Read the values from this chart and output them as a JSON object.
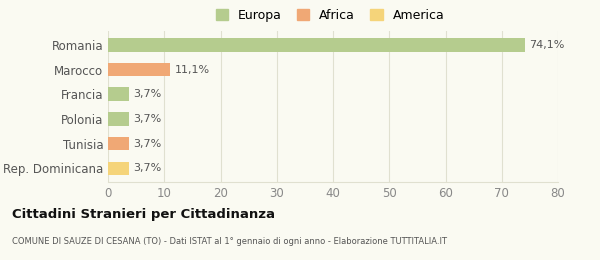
{
  "categories": [
    "Rep. Dominicana",
    "Tunisia",
    "Polonia",
    "Francia",
    "Marocco",
    "Romania"
  ],
  "values": [
    3.7,
    3.7,
    3.7,
    3.7,
    11.1,
    74.1
  ],
  "labels": [
    "3,7%",
    "3,7%",
    "3,7%",
    "3,7%",
    "11,1%",
    "74,1%"
  ],
  "bar_colors": [
    "#f5d47a",
    "#f0a875",
    "#b5cc8e",
    "#b5cc8e",
    "#f0a875",
    "#b5cc8e"
  ],
  "legend_labels": [
    "Europa",
    "Africa",
    "America"
  ],
  "legend_colors": [
    "#b5cc8e",
    "#f0a875",
    "#f5d47a"
  ],
  "xlim": [
    0,
    80
  ],
  "xticks": [
    0,
    10,
    20,
    30,
    40,
    50,
    60,
    70,
    80
  ],
  "title": "Cittadini Stranieri per Cittadinanza",
  "subtitle": "COMUNE DI SAUZE DI CESANA (TO) - Dati ISTAT al 1° gennaio di ogni anno - Elaborazione TUTTITALIA.IT",
  "background_color": "#fafaf2",
  "grid_color": "#e0e0d0"
}
